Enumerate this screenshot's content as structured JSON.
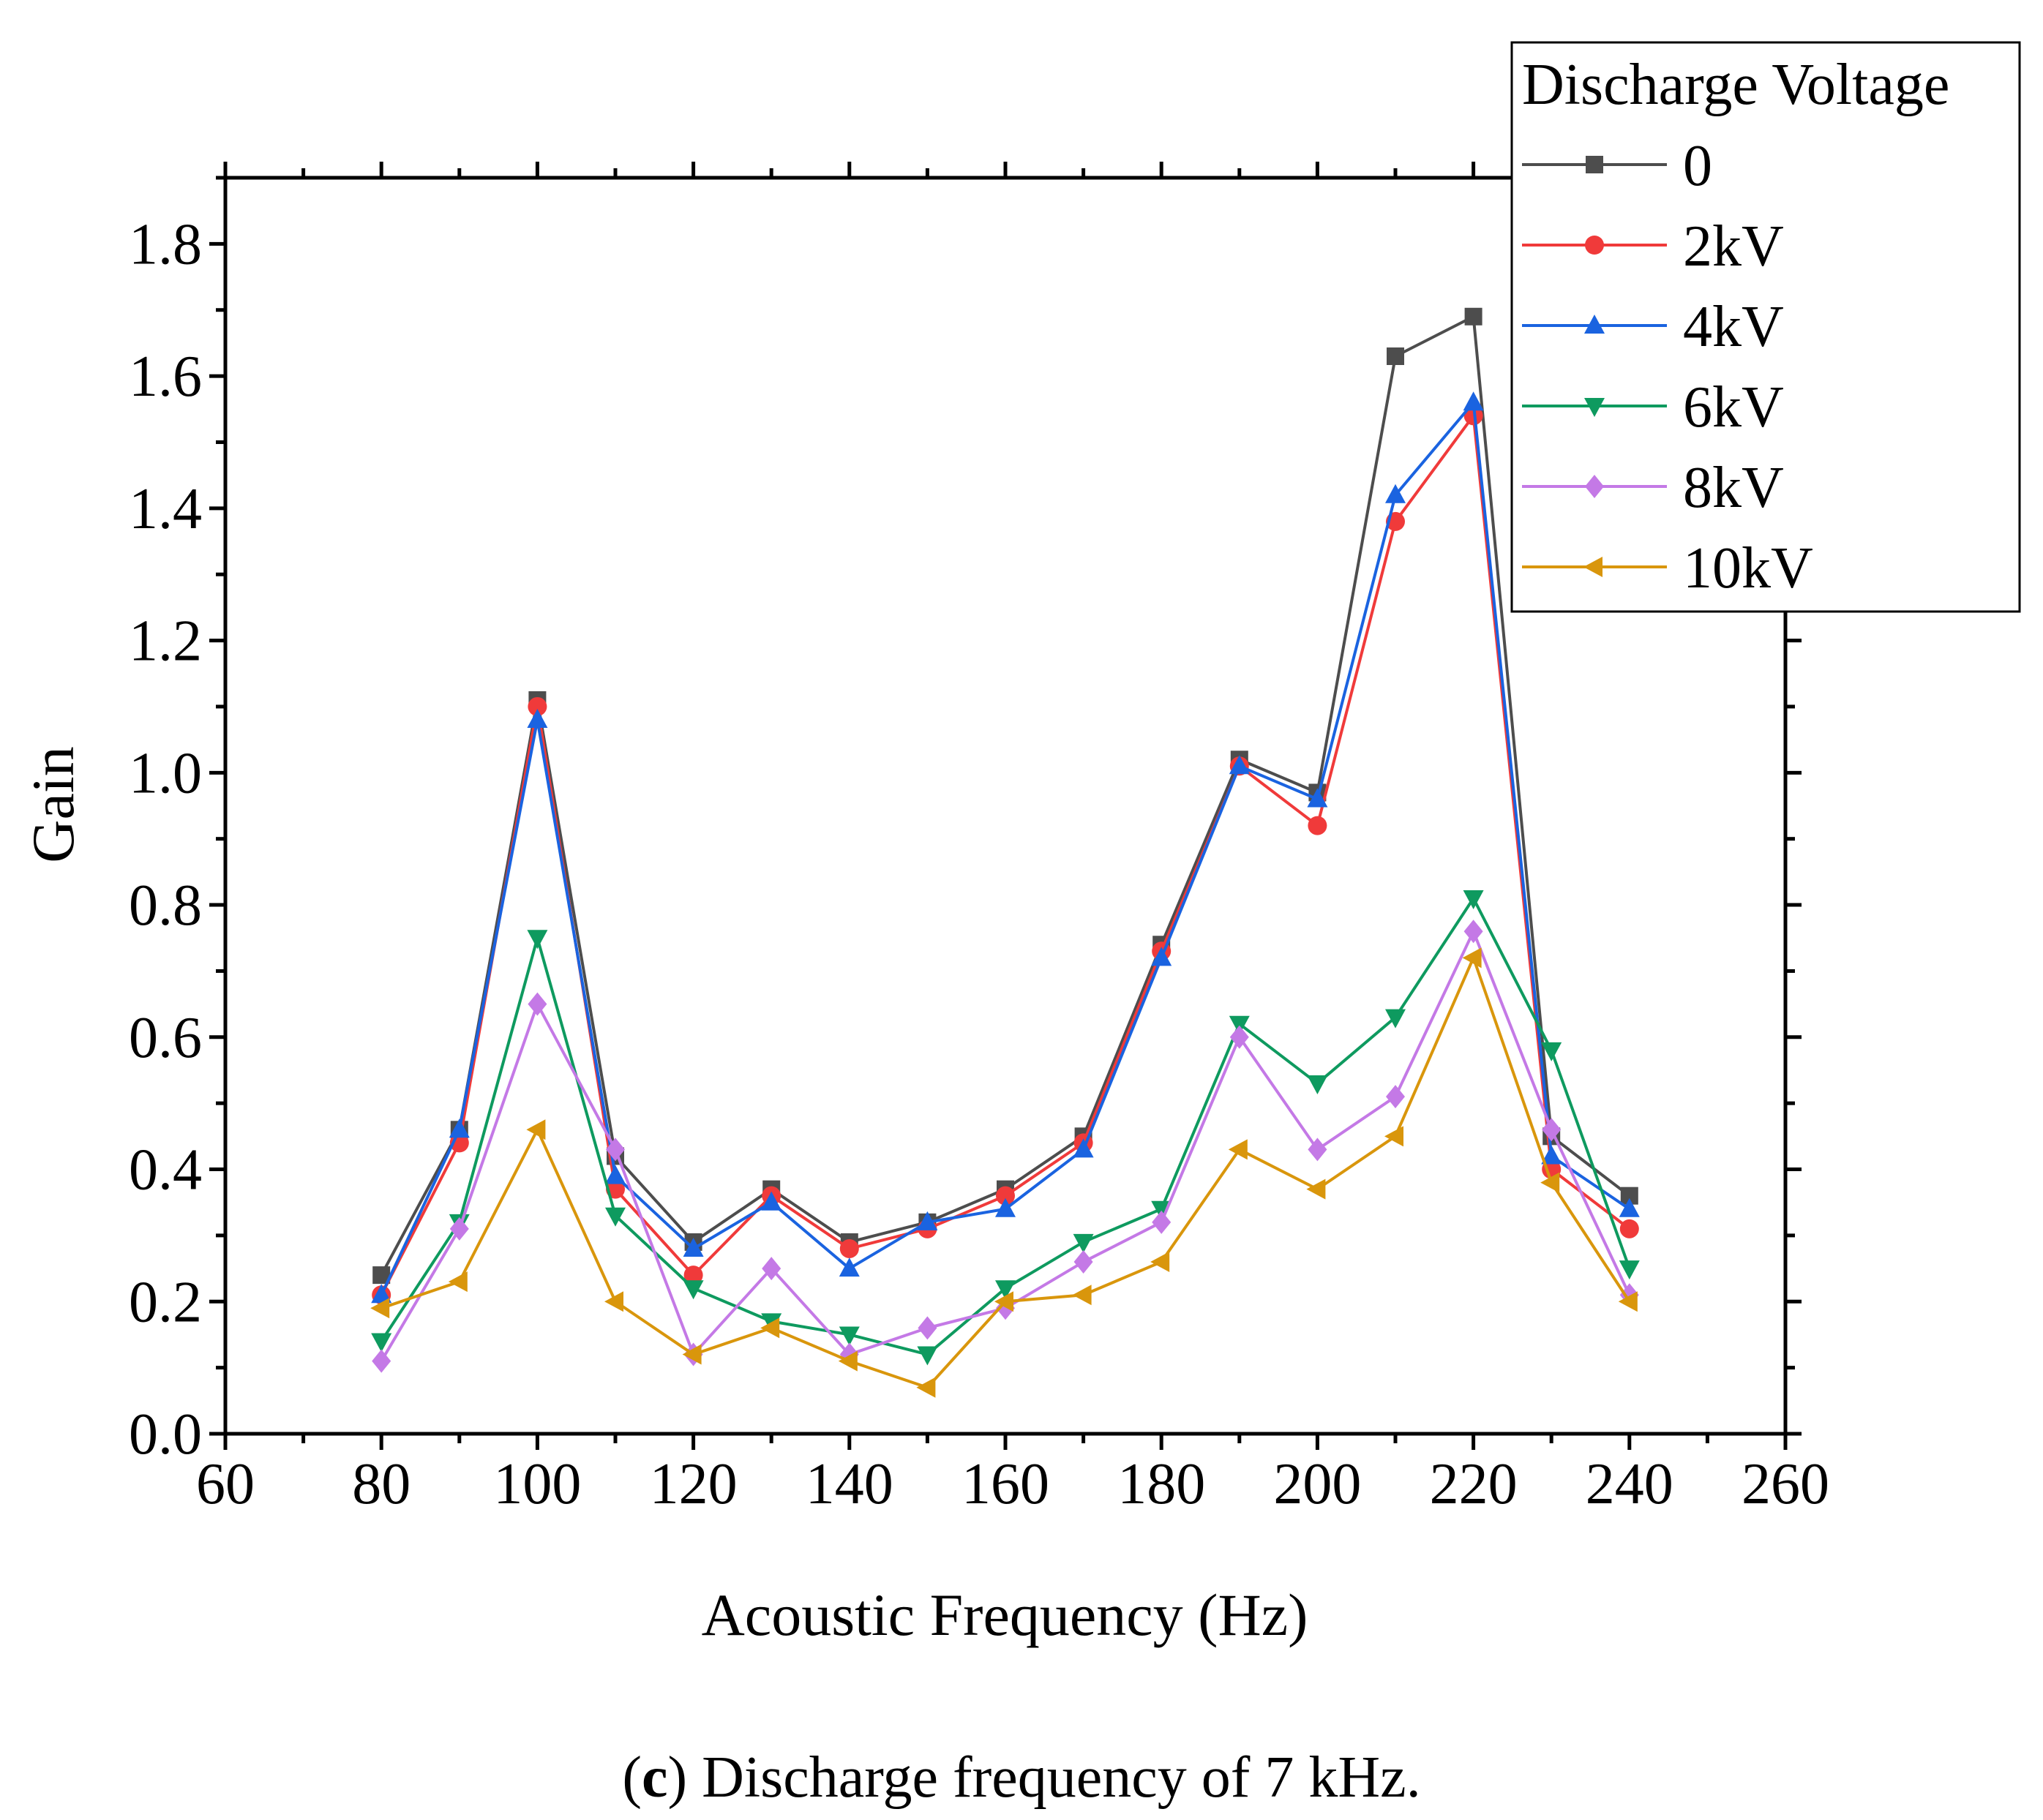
{
  "chart_data": {
    "type": "line",
    "xlabel": "Acoustic Frequency (Hz)",
    "ylabel": "Gain",
    "xlim": [
      60,
      260
    ],
    "ylim": [
      0.0,
      1.9
    ],
    "x_ticks": [
      60,
      80,
      100,
      120,
      140,
      160,
      180,
      200,
      220,
      240,
      260
    ],
    "x_tick_labels": [
      "60",
      "80",
      "100",
      "120",
      "140",
      "160",
      "180",
      "200",
      "220",
      "240",
      "260"
    ],
    "y_ticks": [
      0.0,
      0.2,
      0.4,
      0.6,
      0.8,
      1.0,
      1.2,
      1.4,
      1.6,
      1.8
    ],
    "y_tick_labels": [
      "0.0",
      "0.2",
      "0.4",
      "0.6",
      "0.8",
      "1.0",
      "1.2",
      "1.4",
      "1.6",
      "1.8"
    ],
    "grid": false,
    "legend_title": "Discharge Voltage",
    "legend_position": "top-right",
    "x": [
      80,
      90,
      100,
      110,
      120,
      130,
      140,
      150,
      160,
      170,
      180,
      190,
      200,
      210,
      220,
      230,
      240
    ],
    "series": [
      {
        "name": "0",
        "color": "#4d4d4d",
        "marker": "square",
        "values": [
          0.24,
          0.46,
          1.11,
          0.42,
          0.29,
          0.37,
          0.29,
          0.32,
          0.37,
          0.45,
          0.74,
          1.02,
          0.97,
          1.63,
          1.69,
          0.45,
          0.36
        ]
      },
      {
        "name": "2kV",
        "color": "#f03a3a",
        "marker": "circle",
        "values": [
          0.21,
          0.44,
          1.1,
          0.37,
          0.24,
          0.36,
          0.28,
          0.31,
          0.36,
          0.44,
          0.73,
          1.01,
          0.92,
          1.38,
          1.54,
          0.4,
          0.31
        ]
      },
      {
        "name": "4kV",
        "color": "#1a63e0",
        "marker": "triangle-up",
        "values": [
          0.21,
          0.46,
          1.08,
          0.39,
          0.28,
          0.35,
          0.25,
          0.32,
          0.34,
          0.43,
          0.72,
          1.01,
          0.96,
          1.42,
          1.56,
          0.42,
          0.34
        ]
      },
      {
        "name": "6kV",
        "color": "#0e9a5f",
        "marker": "triangle-down",
        "values": [
          0.14,
          0.32,
          0.75,
          0.33,
          0.22,
          0.17,
          0.15,
          0.12,
          0.22,
          0.29,
          0.34,
          0.62,
          0.53,
          0.63,
          0.81,
          0.58,
          0.25
        ]
      },
      {
        "name": "8kV",
        "color": "#c479e6",
        "marker": "diamond",
        "values": [
          0.11,
          0.31,
          0.65,
          0.43,
          0.12,
          0.25,
          0.12,
          0.16,
          0.19,
          0.26,
          0.32,
          0.6,
          0.43,
          0.51,
          0.76,
          0.46,
          0.21
        ]
      },
      {
        "name": "10kV",
        "color": "#d9960c",
        "marker": "triangle-left",
        "values": [
          0.19,
          0.23,
          0.46,
          0.2,
          0.12,
          0.16,
          0.11,
          0.07,
          0.2,
          0.21,
          0.26,
          0.43,
          0.37,
          0.45,
          0.72,
          0.38,
          0.2
        ]
      }
    ]
  },
  "caption": {
    "label": "c",
    "text": " Discharge frequency of 7 kHz."
  }
}
